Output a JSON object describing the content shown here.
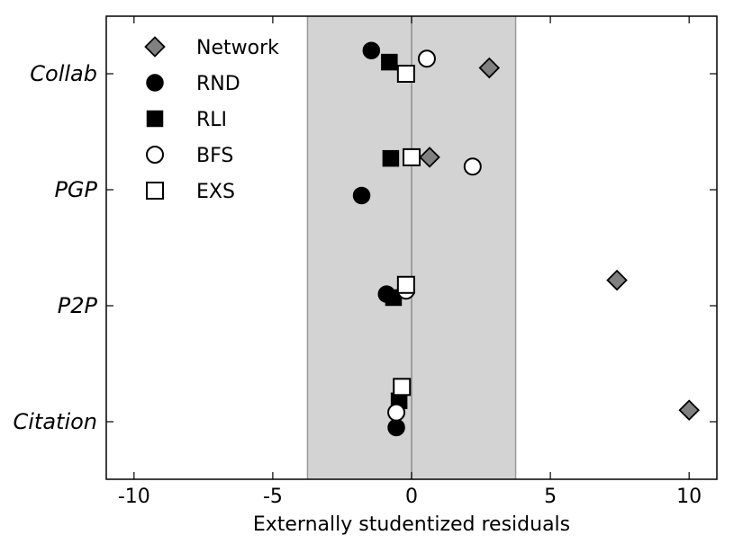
{
  "chart_data": {
    "type": "scatter",
    "xlabel": "Externally studentized residuals",
    "ylabel": "",
    "xlim": [
      -11,
      11
    ],
    "x_ticks": [
      -10,
      -5,
      0,
      5,
      10
    ],
    "x_tick_labels": [
      "-10",
      "-5",
      "0",
      "5",
      "10"
    ],
    "categories": [
      "Collab",
      "PGP",
      "P2P",
      "Citation"
    ],
    "shaded_band": [
      -3.75,
      3.75
    ],
    "zero_line": 0,
    "grid": false,
    "legend_position": "top-left",
    "colors": {
      "band": "#d3d3d3",
      "band_edge": "#9a9a9a",
      "zero_line": "#8c8c8c",
      "network_fill": "#808080",
      "marker_black": "#000000",
      "marker_white": "#ffffff"
    },
    "series": [
      {
        "name": "Network",
        "marker": "diamond",
        "values": [
          2.8,
          0.65,
          7.4,
          10.0
        ],
        "y_offset": [
          0.05,
          0.28,
          0.22,
          0.1
        ]
      },
      {
        "name": "RND",
        "marker": "filled-circle",
        "values": [
          -1.45,
          -1.8,
          -0.9,
          -0.55
        ],
        "y_offset": [
          0.2,
          -0.05,
          0.1,
          -0.05
        ]
      },
      {
        "name": "RLI",
        "marker": "filled-square",
        "values": [
          -0.8,
          -0.75,
          -0.65,
          -0.45
        ],
        "y_offset": [
          0.1,
          0.27,
          0.07,
          0.18
        ]
      },
      {
        "name": "BFS",
        "marker": "open-circle",
        "values": [
          0.55,
          2.2,
          -0.2,
          -0.55
        ],
        "y_offset": [
          0.13,
          0.2,
          0.13,
          0.08
        ]
      },
      {
        "name": "EXS",
        "marker": "open-square",
        "values": [
          -0.2,
          0.0,
          -0.2,
          -0.35
        ],
        "y_offset": [
          0.0,
          0.28,
          0.18,
          0.3
        ]
      }
    ]
  }
}
